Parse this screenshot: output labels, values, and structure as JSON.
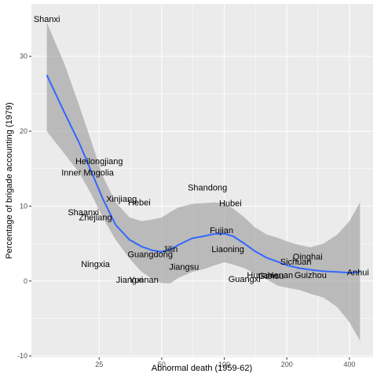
{
  "chart_data": {
    "type": "scatter",
    "title": "",
    "xlabel": "Abnormal death (1959-62)",
    "ylabel": "Percentage of brigade accounting (1979)",
    "x_scale": "log",
    "xlim": [
      11.8,
      520
    ],
    "ylim": [
      -10.2,
      37
    ],
    "x_ticks": [
      25,
      50,
      100,
      200,
      400
    ],
    "y_ticks": [
      -10,
      0,
      10,
      20,
      30
    ],
    "grid": true,
    "legend": "none",
    "points": [
      {
        "label": "Shanxi",
        "x": 14,
        "y": 35
      },
      {
        "label": "Heilongjiang",
        "x": 25,
        "y": 16
      },
      {
        "label": "Inner Mngolia",
        "x": 22,
        "y": 14.5
      },
      {
        "label": "Xinjiang",
        "x": 32,
        "y": 11
      },
      {
        "label": "Hebei",
        "x": 39,
        "y": 10.5
      },
      {
        "label": "Shaanxi",
        "x": 21,
        "y": 9.2
      },
      {
        "label": "Zhejiang",
        "x": 24,
        "y": 8.5
      },
      {
        "label": "Ningxia",
        "x": 24,
        "y": 2.3
      },
      {
        "label": "Jiangxi",
        "x": 35,
        "y": 0.2
      },
      {
        "label": "Yunnan",
        "x": 41,
        "y": 0.2
      },
      {
        "label": "Guangdong",
        "x": 44,
        "y": 3.6
      },
      {
        "label": "Jilin",
        "x": 55,
        "y": 4.3
      },
      {
        "label": "Jiangsu",
        "x": 64,
        "y": 1.9
      },
      {
        "label": "Shandong",
        "x": 83,
        "y": 12.5
      },
      {
        "label": "Hubei",
        "x": 107,
        "y": 10.4
      },
      {
        "label": "Fujian",
        "x": 97,
        "y": 6.8
      },
      {
        "label": "Liaoning",
        "x": 104,
        "y": 4.3
      },
      {
        "label": "Guangxi",
        "x": 125,
        "y": 0.3
      },
      {
        "label": "Hunan",
        "x": 148,
        "y": 0.8
      },
      {
        "label": "Gansu",
        "x": 168,
        "y": 0.7
      },
      {
        "label": "Henan",
        "x": 186,
        "y": 0.8
      },
      {
        "label": "Guizhou",
        "x": 260,
        "y": 0.8
      },
      {
        "label": "Sichuan",
        "x": 221,
        "y": 2.6
      },
      {
        "label": "Qinghai",
        "x": 252,
        "y": 3.3
      },
      {
        "label": "Anhui",
        "x": 440,
        "y": 1.2
      }
    ],
    "smooth": {
      "method": "loess",
      "color": "#3366FF",
      "band_color": "#999999",
      "x": [
        14,
        17,
        20,
        23,
        26,
        30,
        35,
        40,
        45,
        50,
        55,
        60,
        70,
        80,
        90,
        100,
        110,
        125,
        140,
        160,
        180,
        200,
        230,
        260,
        300,
        350,
        400,
        450
      ],
      "y": [
        27.5,
        22.5,
        18.5,
        14.5,
        11.0,
        7.5,
        5.5,
        4.6,
        4.1,
        3.9,
        4.2,
        4.8,
        5.7,
        6.0,
        6.3,
        6.3,
        6.0,
        5.0,
        4.0,
        3.1,
        2.6,
        2.1,
        1.7,
        1.5,
        1.3,
        1.2,
        1.1,
        1.2
      ],
      "lower": [
        20.0,
        17.0,
        14.5,
        11.5,
        8.5,
        5.5,
        3.0,
        1.2,
        0.3,
        -0.3,
        -0.3,
        0.4,
        1.2,
        1.6,
        2.1,
        2.5,
        2.2,
        1.7,
        1.0,
        0.2,
        -0.6,
        -0.9,
        -1.2,
        -1.7,
        -2.2,
        -3.5,
        -5.5,
        -8.0
      ],
      "upper": [
        34.5,
        29.0,
        23.5,
        18.5,
        14.0,
        10.5,
        8.5,
        8.0,
        8.2,
        8.5,
        9.2,
        9.8,
        10.3,
        10.4,
        10.5,
        10.3,
        9.7,
        8.5,
        7.2,
        6.2,
        5.8,
        5.3,
        4.8,
        4.5,
        5.0,
        6.2,
        8.0,
        10.5
      ]
    }
  }
}
